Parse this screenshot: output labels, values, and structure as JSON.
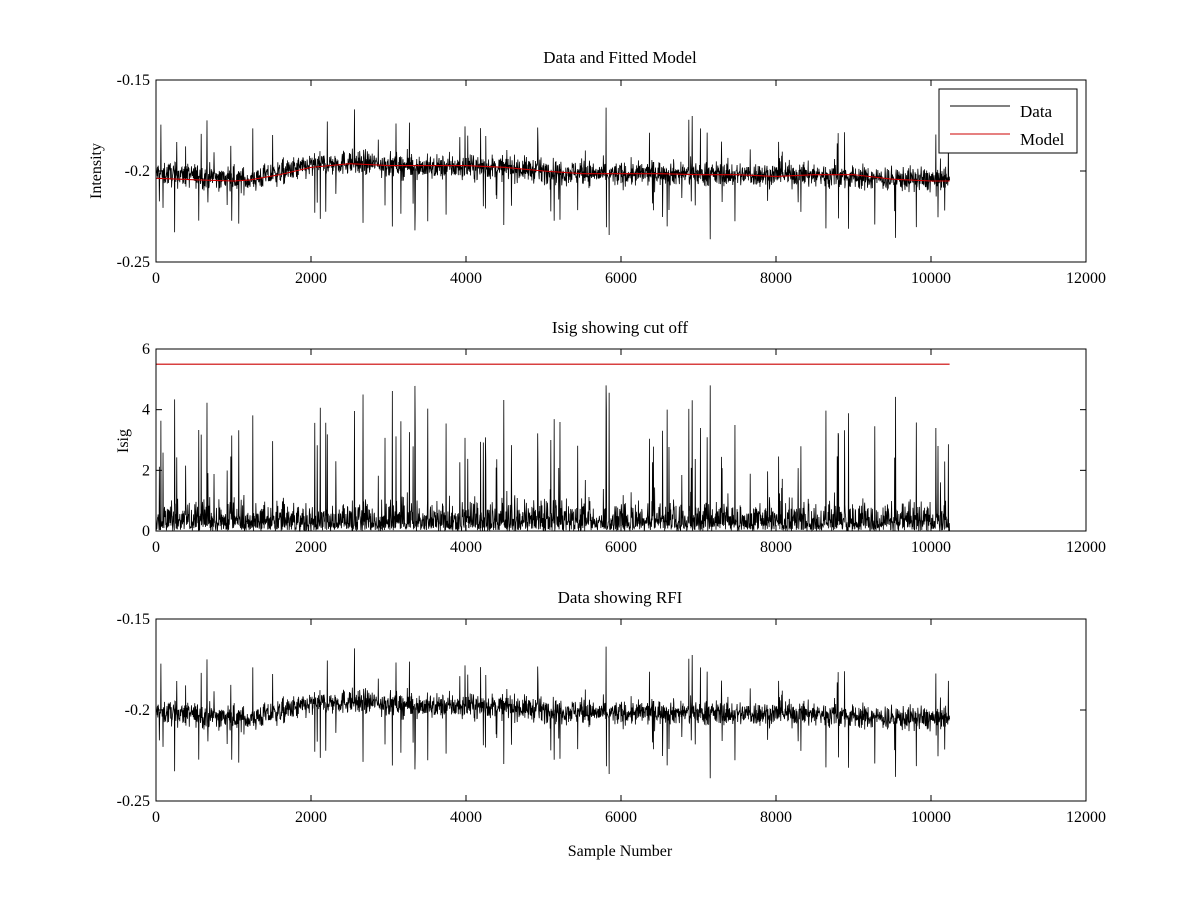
{
  "chart_data": [
    {
      "type": "line",
      "title": "Data and Fitted Model",
      "xlabel": "",
      "ylabel": "Intensity",
      "xlim": [
        0,
        12000
      ],
      "ylim": [
        -0.25,
        -0.15
      ],
      "y_reversed": true,
      "xticks": [
        "0",
        "2000",
        "4000",
        "6000",
        "8000",
        "10000",
        "12000"
      ],
      "yticks": [
        "-0.15",
        "-0.2",
        "-0.25"
      ],
      "legend": {
        "position": "top-right",
        "entries": [
          "Data",
          "Model"
        ]
      },
      "grid": false,
      "series": [
        {
          "name": "Data",
          "color": "#000000",
          "x_range": [
            0,
            10240
          ],
          "n_points": 10240,
          "noise_amplitude": 0.012,
          "trend": {
            "x": [
              0,
              1200,
              2000,
              2500,
              3500,
              4500,
              5000,
              6000,
              6500,
              7500,
              8500,
              9200,
              10240
            ],
            "y": [
              -0.201,
              -0.205,
              -0.197,
              -0.195,
              -0.198,
              -0.198,
              -0.2,
              -0.202,
              -0.201,
              -0.202,
              -0.202,
              -0.204,
              -0.205
            ]
          }
        },
        {
          "name": "Model",
          "color": "#cc0000",
          "x": [
            0,
            600,
            1000,
            1200,
            1600,
            1800,
            2000,
            2500,
            3000,
            3500,
            4000,
            4500,
            5000,
            5500,
            6000,
            6500,
            7000,
            7500,
            8000,
            8500,
            9000,
            9500,
            10000,
            10240
          ],
          "y": [
            -0.204,
            -0.205,
            -0.2055,
            -0.205,
            -0.202,
            -0.2,
            -0.198,
            -0.196,
            -0.197,
            -0.197,
            -0.197,
            -0.198,
            -0.2,
            -0.2015,
            -0.2015,
            -0.2015,
            -0.202,
            -0.202,
            -0.203,
            -0.202,
            -0.202,
            -0.2045,
            -0.2055,
            -0.2055
          ]
        }
      ]
    },
    {
      "type": "line",
      "title": "Isig showing cut off",
      "xlabel": "",
      "ylabel": "Isig",
      "xlim": [
        0,
        12000
      ],
      "ylim": [
        0,
        6
      ],
      "xticks": [
        "0",
        "2000",
        "4000",
        "6000",
        "8000",
        "10000",
        "12000"
      ],
      "yticks": [
        "0",
        "2",
        "4",
        "6"
      ],
      "grid": false,
      "series": [
        {
          "color": "#000000",
          "x_range": [
            0,
            10240
          ],
          "n_points": 10240,
          "typical_range": [
            0,
            2.4
          ],
          "max": 4.8
        },
        {
          "color": "#cc0000",
          "x": [
            0,
            10240
          ],
          "y": [
            5.5,
            5.5
          ]
        }
      ]
    },
    {
      "type": "line",
      "title": "Data showing RFI",
      "xlabel": "Sample Number",
      "ylabel": "",
      "xlim": [
        0,
        12000
      ],
      "ylim": [
        -0.25,
        -0.15
      ],
      "y_reversed": true,
      "xticks": [
        "0",
        "2000",
        "4000",
        "6000",
        "8000",
        "10000",
        "12000"
      ],
      "yticks": [
        "-0.15",
        "-0.2",
        "-0.25"
      ],
      "grid": false,
      "series": [
        {
          "color": "#000000",
          "x_range": [
            0,
            10240
          ],
          "n_points": 10240,
          "noise_amplitude": 0.012,
          "same_as": "Data"
        }
      ]
    }
  ]
}
